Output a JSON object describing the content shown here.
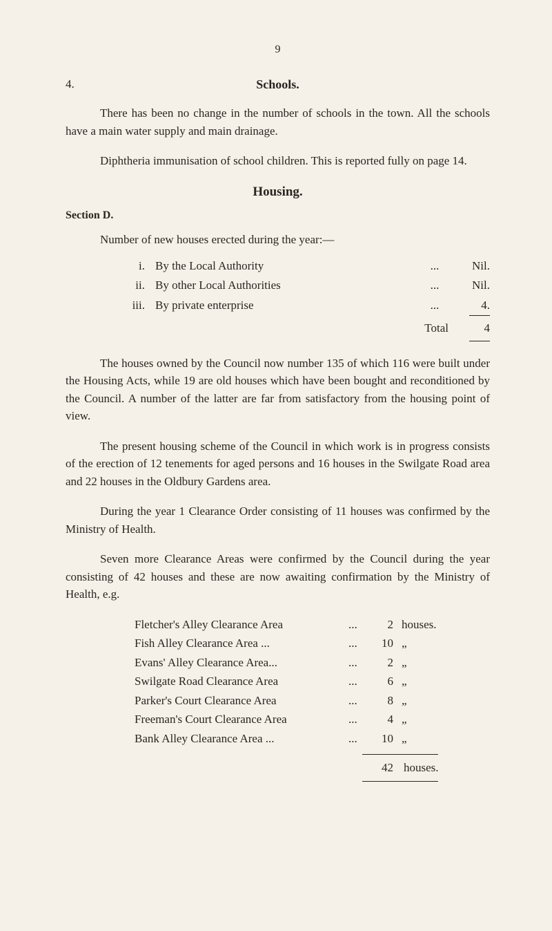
{
  "pageNumber": "9",
  "section4": {
    "num": "4.",
    "title": "Schools.",
    "para1": "There has been no change in the number of schools in the town. All the schools have a main water supply and main drainage.",
    "para2": "Diphtheria immunisation of school children. This is re­ported fully on page 14."
  },
  "housing": {
    "title": "Housing.",
    "sectionLabel": "Section D.",
    "intro": "Number of new houses erected during the year:—",
    "items": [
      {
        "num": "i.",
        "text": "By the Local Authority",
        "dots": "...",
        "val": "Nil."
      },
      {
        "num": "ii.",
        "text": "By other Local Authorities",
        "dots": "...",
        "val": "Nil."
      },
      {
        "num": "iii.",
        "text": "By private enterprise",
        "dots": "...",
        "val": "4."
      }
    ],
    "totalLabel": "Total",
    "totalVal": "4",
    "para1": "The houses owned by the Council now number 135 of which 116 were built under the Housing Acts, while 19 are old houses which have been bought and reconditioned by the Council. A number of the latter are far from satisfactory from the housing point of view.",
    "para2": "The present housing scheme of the Council in which work is in progress consists of the erection of 12 tenements for aged persons and 16 houses in the Swilgate Road area and 22 houses in the Oldbury Gardens area.",
    "para3": "During the year 1 Clearance Order consisting of 11 houses was confirmed by the Ministry of Health.",
    "para4": "Seven more Clearance Areas were confirmed by the Council during the year consisting of 42 houses and these are now awaiting confirmation by the Ministry of Health, e.g.",
    "clearances": [
      {
        "name": "Fletcher's Alley Clearance Area",
        "dots": "...",
        "num": "2",
        "unit": "houses."
      },
      {
        "name": "Fish Alley Clearance Area ...",
        "dots": "...",
        "num": "10",
        "unit": "„"
      },
      {
        "name": "Evans' Alley Clearance Area...",
        "dots": "...",
        "num": "2",
        "unit": "„"
      },
      {
        "name": "Swilgate Road Clearance Area",
        "dots": "...",
        "num": "6",
        "unit": "„"
      },
      {
        "name": "Parker's Court Clearance Area",
        "dots": "...",
        "num": "8",
        "unit": "„"
      },
      {
        "name": "Freeman's Court Clearance Area",
        "dots": "...",
        "num": "4",
        "unit": "„"
      },
      {
        "name": "Bank Alley Clearance Area ...",
        "dots": "...",
        "num": "10",
        "unit": "„"
      }
    ],
    "finalTotal": {
      "num": "42",
      "unit": "houses."
    }
  }
}
